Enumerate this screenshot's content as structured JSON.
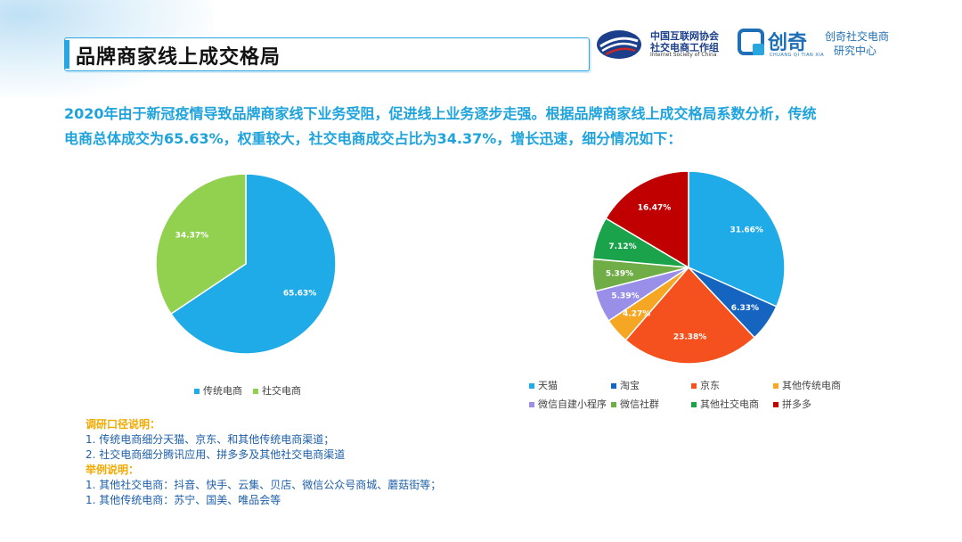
{
  "header": {
    "title": "品牌商家线上成交格局",
    "logo1": {
      "line1": "中国互联网协会",
      "line2": "社交电商工作组",
      "line3": "Internet Society of China"
    },
    "logo2": {
      "brand": "创奇",
      "brand_sub": "CHUANG QI TIAN XIA",
      "caption_line1": "创奇社交电商",
      "caption_line2": "研究中心"
    }
  },
  "intro": {
    "line1": "2020年由于新冠疫情导致品牌商家线下业务受阻，促进线上业务逐步走强。根据品牌商家线上成交格局系数分析，传统",
    "line2": "电商总体成交为65.63%，权重较大，社交电商成交占比为34.37%，增长迅速，细分情况如下："
  },
  "colors": {
    "accent": "#2aa6df",
    "intro_text": "#1ea3dc",
    "note_heading": "#f2a900",
    "note_text": "#1e5fa8"
  },
  "chart_data": [
    {
      "type": "pie",
      "slices": [
        {
          "name": "传统电商",
          "value": 65.63,
          "label": "65.63%",
          "color": "#1faae8"
        },
        {
          "name": "社交电商",
          "value": 34.37,
          "label": "34.37%",
          "color": "#92d050"
        }
      ],
      "legend_position": "bottom"
    },
    {
      "type": "pie",
      "slices": [
        {
          "name": "天猫",
          "value": 31.66,
          "label": "31.66%",
          "color": "#1faae8"
        },
        {
          "name": "淘宝",
          "value": 6.33,
          "label": "6.33%",
          "color": "#1565c0"
        },
        {
          "name": "京东",
          "value": 23.38,
          "label": "23.38%",
          "color": "#f4511e"
        },
        {
          "name": "其他传统电商",
          "value": 4.27,
          "label": "4.27%",
          "color": "#f5a623"
        },
        {
          "name": "微信自建小程序",
          "value": 5.39,
          "label": "5.39%",
          "color": "#9a8fe8"
        },
        {
          "name": "微信社群",
          "value": 5.39,
          "label": "5.39%",
          "color": "#70ad47"
        },
        {
          "name": "其他社交电商",
          "value": 7.12,
          "label": "7.12%",
          "color": "#1aa34a"
        },
        {
          "name": "拼多多",
          "value": 16.47,
          "label": "16.47%",
          "color": "#c00000"
        }
      ],
      "legend_position": "bottom"
    }
  ],
  "notes": {
    "survey_heading": "调研口径说明：",
    "survey_items": [
      "1.    传统电商细分天猫、京东、和其他传统电商渠道；",
      "2.    社交电商细分腾讯应用、拼多多及其他社交电商渠道"
    ],
    "example_heading": "举例说明：",
    "example_items": [
      "1.   其他社交电商：抖音、快手、云集、贝店、微信公众号商城、蘑菇街等；",
      "1.   其他传统电商：苏宁、国美、唯品会等"
    ]
  }
}
